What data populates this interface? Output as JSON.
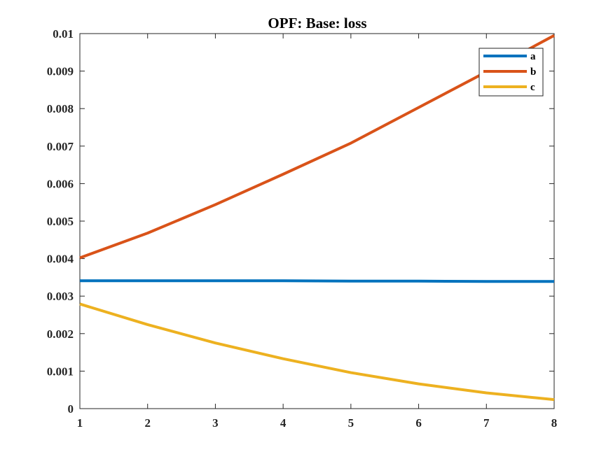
{
  "chart_data": {
    "type": "line",
    "title": "OPF: Base: loss",
    "xlabel": "",
    "ylabel": "",
    "xlim": [
      1,
      8
    ],
    "ylim": [
      0,
      0.01
    ],
    "x": [
      1,
      2,
      3,
      4,
      5,
      6,
      7,
      8
    ],
    "xticks": [
      "1",
      "2",
      "3",
      "4",
      "5",
      "6",
      "7",
      "8"
    ],
    "yticks": [
      "0",
      "0.001",
      "0.002",
      "0.003",
      "0.004",
      "0.005",
      "0.006",
      "0.007",
      "0.008",
      "0.009",
      "0.01"
    ],
    "grid": false,
    "legend_position": "top-right",
    "series": [
      {
        "name": "a",
        "color": "#0072BD",
        "values": [
          0.00341,
          0.00341,
          0.00341,
          0.00341,
          0.0034,
          0.0034,
          0.00339,
          0.00339
        ]
      },
      {
        "name": "b",
        "color": "#D95319",
        "values": [
          0.00402,
          0.00468,
          0.00544,
          0.00625,
          0.00708,
          0.00803,
          0.00898,
          0.00995
        ]
      },
      {
        "name": "c",
        "color": "#EDB120",
        "values": [
          0.00279,
          0.00224,
          0.00175,
          0.00133,
          0.00096,
          0.00066,
          0.00042,
          0.00024
        ]
      }
    ]
  }
}
